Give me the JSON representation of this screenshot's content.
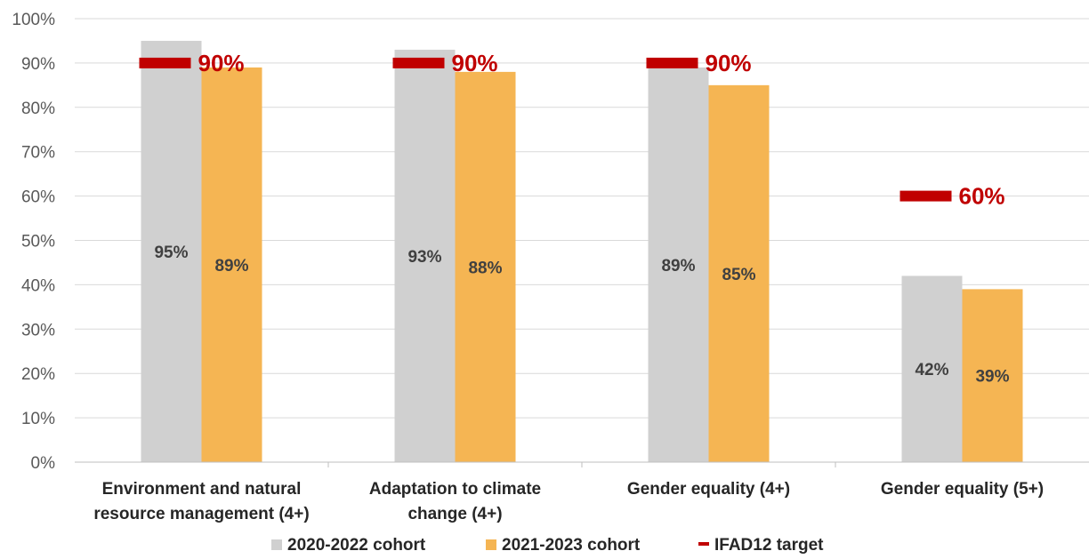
{
  "chart_data": {
    "type": "bar",
    "title": "",
    "xlabel": "",
    "ylabel": "",
    "ylim": [
      0,
      100
    ],
    "ytick_step": 10,
    "ytick_suffix": "%",
    "grid": true,
    "legend_position": "bottom",
    "categories": [
      [
        "Environment and natural",
        "resource management (4+)"
      ],
      [
        "Adaptation to climate",
        "change (4+)"
      ],
      [
        "Gender equality (4+)"
      ],
      [
        "Gender equality (5+)"
      ]
    ],
    "series": [
      {
        "name": "2020-2022 cohort",
        "color": "#d0d0d0",
        "values": [
          95,
          93,
          89,
          42
        ],
        "labels": [
          "95%",
          "93%",
          "89%",
          "42%"
        ]
      },
      {
        "name": "2021-2023 cohort",
        "color": "#f5b553",
        "values": [
          89,
          88,
          85,
          39
        ],
        "labels": [
          "89%",
          "88%",
          "85%",
          "39%"
        ]
      }
    ],
    "target": {
      "name": "IFAD12 target",
      "color": "#c00000",
      "values": [
        90,
        90,
        90,
        60
      ],
      "labels": [
        "90%",
        "90%",
        "90%",
        "60%"
      ]
    }
  }
}
